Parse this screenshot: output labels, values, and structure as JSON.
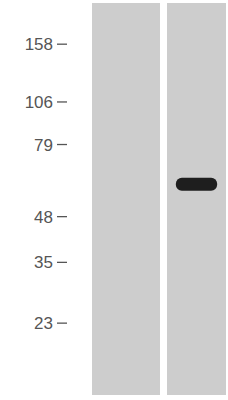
{
  "chart_data": {
    "type": "western_blot",
    "log": "y",
    "ylim": [
      14,
      210
    ],
    "yticks": [
      158,
      106,
      79,
      48,
      35,
      23
    ],
    "tick_labels": "y",
    "categories": [
      null,
      null
    ],
    "values": [
      null,
      60
    ],
    "color": "#1e1e1e"
  }
}
